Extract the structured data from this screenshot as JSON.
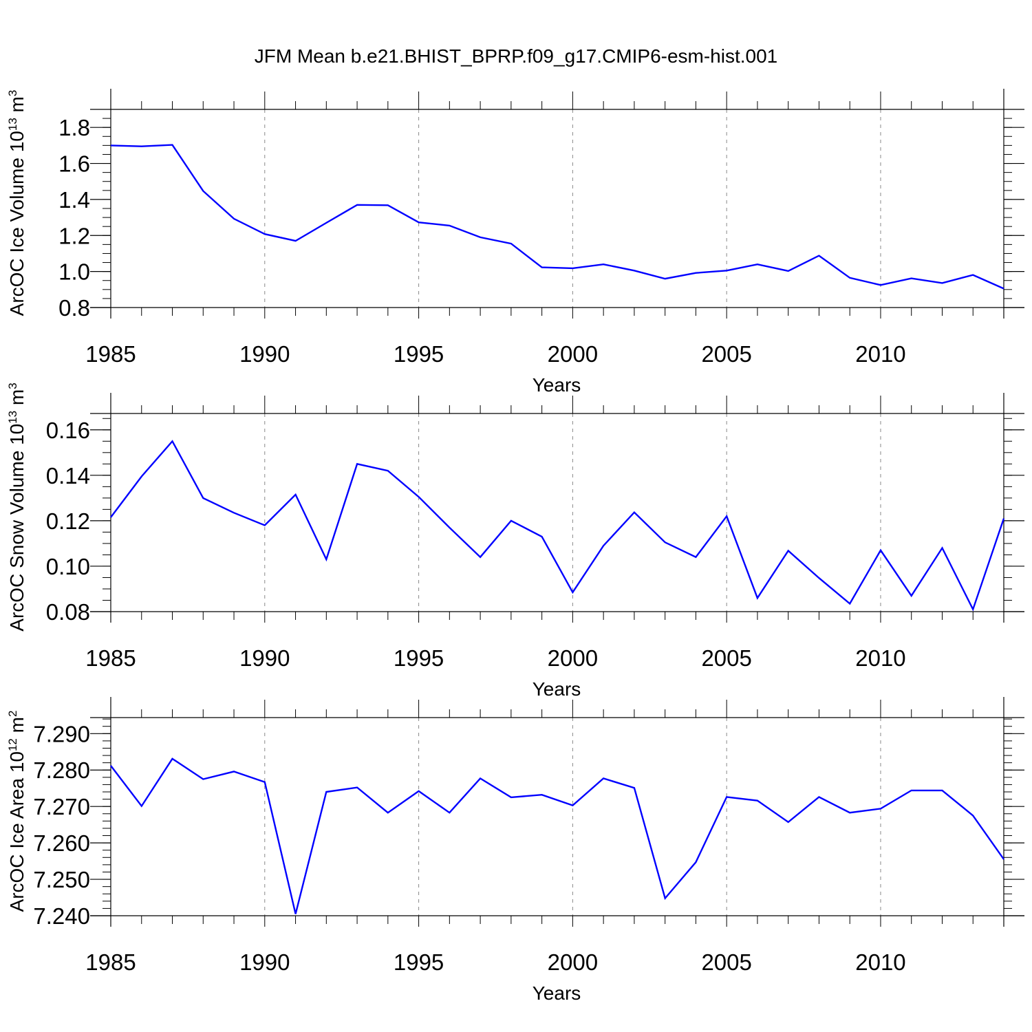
{
  "title": "JFM Mean b.e21.BHIST_BPRP.f09_g17.CMIP6-esm-hist.001",
  "chart_data": [
    {
      "type": "line",
      "ylabel_prefix": "ArcOC Ice Volume 10",
      "ylabel_exp": "13",
      "ylabel_unit": " m",
      "ylabel_unit_exp": "3",
      "xlabel": "Years",
      "xlim": [
        1985,
        2014
      ],
      "ylim": [
        0.8,
        1.9
      ],
      "xticks": [
        1985,
        1990,
        1995,
        2000,
        2005,
        2010
      ],
      "xtick_labels": [
        "1985",
        "1990",
        "1995",
        "2000",
        "2005",
        "2010"
      ],
      "yticks": [
        0.8,
        1.0,
        1.2,
        1.4,
        1.6,
        1.8
      ],
      "ytick_labels": [
        "0.8",
        "1.0",
        "1.2",
        "1.4",
        "1.6",
        "1.8"
      ],
      "yminor_step": 0.05,
      "line_color": "#0000ff",
      "x": [
        1985,
        1986,
        1987,
        1988,
        1989,
        1990,
        1991,
        1992,
        1993,
        1994,
        1995,
        1996,
        1997,
        1998,
        1999,
        2000,
        2001,
        2002,
        2003,
        2004,
        2005,
        2006,
        2007,
        2008,
        2009,
        2010,
        2011,
        2012,
        2013,
        2014
      ],
      "values": [
        1.7,
        1.695,
        1.703,
        1.447,
        1.293,
        1.208,
        1.17,
        1.27,
        1.37,
        1.368,
        1.273,
        1.255,
        1.19,
        1.155,
        1.023,
        1.018,
        1.04,
        1.005,
        0.96,
        0.992,
        1.005,
        1.04,
        1.003,
        1.088,
        0.965,
        0.925,
        0.962,
        0.936,
        0.981,
        0.905
      ]
    },
    {
      "type": "line",
      "ylabel_prefix": "ArcOC Snow Volume 10",
      "ylabel_exp": "13",
      "ylabel_unit": " m",
      "ylabel_unit_exp": "3",
      "xlabel": "Years",
      "xlim": [
        1985,
        2014
      ],
      "ylim": [
        0.08,
        0.1672
      ],
      "xticks": [
        1985,
        1990,
        1995,
        2000,
        2005,
        2010
      ],
      "xtick_labels": [
        "1985",
        "1990",
        "1995",
        "2000",
        "2005",
        "2010"
      ],
      "yticks": [
        0.08,
        0.1,
        0.12,
        0.14,
        0.16
      ],
      "ytick_labels": [
        "0.08",
        "0.10",
        "0.12",
        "0.14",
        "0.16"
      ],
      "yminor_step": 0.005,
      "line_color": "#0000ff",
      "x": [
        1985,
        1986,
        1987,
        1988,
        1989,
        1990,
        1991,
        1992,
        1993,
        1994,
        1995,
        1996,
        1997,
        1998,
        1999,
        2000,
        2001,
        2002,
        2003,
        2004,
        2005,
        2006,
        2007,
        2008,
        2009,
        2010,
        2011,
        2012,
        2013,
        2014
      ],
      "values": [
        0.1215,
        0.1395,
        0.155,
        0.13,
        0.1235,
        0.118,
        0.1315,
        0.103,
        0.145,
        0.142,
        0.1305,
        0.117,
        0.104,
        0.12,
        0.113,
        0.0885,
        0.109,
        0.1237,
        0.1105,
        0.104,
        0.122,
        0.086,
        0.1068,
        0.0948,
        0.0835,
        0.107,
        0.087,
        0.108,
        0.081,
        0.121
      ]
    },
    {
      "type": "line",
      "ylabel_prefix": "ArcOC Ice Area 10",
      "ylabel_exp": "12",
      "ylabel_unit": " m",
      "ylabel_unit_exp": "2",
      "xlabel": "Years",
      "xlim": [
        1985,
        2014
      ],
      "ylim": [
        7.24,
        7.2944
      ],
      "xticks": [
        1985,
        1990,
        1995,
        2000,
        2005,
        2010
      ],
      "xtick_labels": [
        "1985",
        "1990",
        "1995",
        "2000",
        "2005",
        "2010"
      ],
      "yticks": [
        7.24,
        7.25,
        7.26,
        7.27,
        7.28,
        7.29
      ],
      "ytick_labels": [
        "7.240",
        "7.250",
        "7.260",
        "7.270",
        "7.280",
        "7.290"
      ],
      "yminor_step": 0.002,
      "line_color": "#0000ff",
      "x": [
        1985,
        1986,
        1987,
        1988,
        1989,
        1990,
        1991,
        1992,
        1993,
        1994,
        1995,
        1996,
        1997,
        1998,
        1999,
        2000,
        2001,
        2002,
        2003,
        2004,
        2005,
        2006,
        2007,
        2008,
        2009,
        2010,
        2011,
        2012,
        2013,
        2014
      ],
      "values": [
        7.2812,
        7.2701,
        7.2831,
        7.2775,
        7.2796,
        7.2767,
        7.2405,
        7.274,
        7.2752,
        7.2683,
        7.2742,
        7.2683,
        7.2777,
        7.2725,
        7.2732,
        7.2703,
        7.2777,
        7.2751,
        7.2448,
        7.2547,
        7.2726,
        7.2716,
        7.2657,
        7.2726,
        7.2683,
        7.2694,
        7.2744,
        7.2744,
        7.2675,
        7.2555
      ]
    }
  ]
}
